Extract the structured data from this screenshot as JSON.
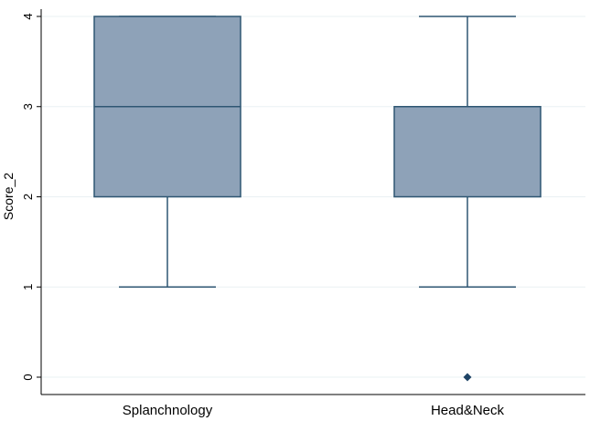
{
  "chart_data": {
    "type": "box",
    "ylabel": "Score_2",
    "ylim": [
      0,
      4
    ],
    "yticks": [
      0,
      1,
      2,
      3,
      4
    ],
    "grid": true,
    "colors": {
      "box_fill": "#8EA2B8",
      "box_stroke": "#2E5672",
      "grid": "#EAF0F3",
      "outlier": "#1F4466",
      "axis": "#000000"
    },
    "categories": [
      "Splanchnology",
      "Head&Neck"
    ],
    "boxes": [
      {
        "category": "Splanchnology",
        "min": 1,
        "q1": 2,
        "median": 3,
        "q3": 4,
        "max": 4,
        "outliers": []
      },
      {
        "category": "Head&Neck",
        "min": 1,
        "q1": 2,
        "median": 3,
        "q3": 3,
        "max": 4,
        "outliers": [
          0
        ]
      }
    ]
  }
}
